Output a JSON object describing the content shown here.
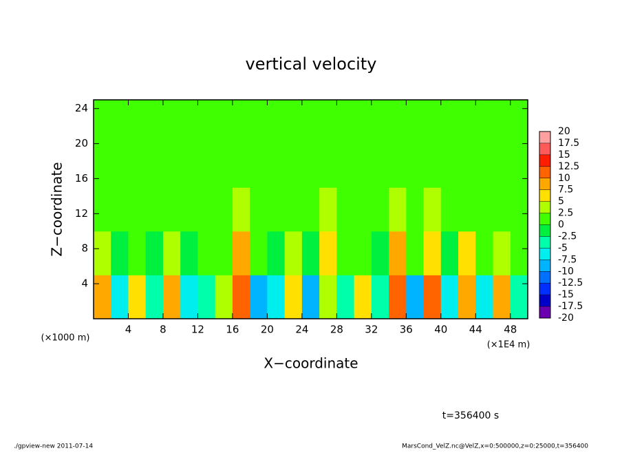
{
  "chart_data": {
    "type": "heatmap",
    "title": "vertical velocity",
    "x_label": "X−coordinate",
    "y_label": "Z−coordinate",
    "x_unit": "(×1E4 m)",
    "y_unit": "(×1000 m)",
    "x": [
      1,
      3,
      5,
      7,
      9,
      11,
      13,
      15,
      17,
      19,
      21,
      23,
      25,
      27,
      29,
      31,
      33,
      35,
      37,
      39,
      41,
      43,
      45,
      47,
      49
    ],
    "y": [
      2.5,
      7.5,
      12.5,
      17.5,
      22.5
    ],
    "z": [
      [
        8,
        -6,
        6,
        -5,
        9,
        -7,
        -4,
        3,
        12,
        -8,
        -6,
        5,
        -9,
        4,
        -5,
        6,
        -4,
        10,
        -8,
        12,
        -7,
        9,
        -6,
        8,
        -5
      ],
      [
        3,
        -2,
        2,
        -1,
        4,
        -2,
        1,
        2,
        9,
        0,
        -1,
        3,
        -2,
        5,
        0,
        2,
        -1,
        8,
        1,
        7,
        -1,
        5,
        0,
        4,
        0
      ],
      [
        1,
        1,
        2,
        1,
        2,
        1,
        1,
        2,
        4,
        1,
        1,
        2,
        1,
        3,
        1,
        2,
        1,
        3,
        2,
        3,
        1,
        2,
        1,
        2,
        1
      ],
      [
        1,
        1,
        1,
        1,
        1,
        1,
        1,
        1,
        2,
        1,
        1,
        1,
        1,
        2,
        1,
        1,
        1,
        1,
        2,
        2,
        1,
        1,
        1,
        1,
        1
      ],
      [
        1,
        1,
        1,
        1,
        1,
        1,
        1,
        1,
        1,
        1,
        1,
        1,
        1,
        1,
        1,
        1,
        1,
        1,
        1,
        1,
        1,
        1,
        1,
        1,
        1
      ]
    ],
    "xlim": [
      0,
      50
    ],
    "ylim": [
      0,
      25
    ],
    "xticks": [
      4,
      8,
      12,
      16,
      20,
      24,
      28,
      32,
      36,
      40,
      44,
      48
    ],
    "yticks": [
      4,
      8,
      12,
      16,
      20,
      24
    ],
    "levels": [
      -20,
      -17.5,
      -15,
      -12.5,
      -10,
      -7.5,
      -5,
      -2.5,
      0,
      2.5,
      5,
      7.5,
      10,
      12.5,
      15,
      17.5,
      20
    ],
    "colors": [
      "#6a00b0",
      "#0000c8",
      "#0030ff",
      "#0070ff",
      "#00b4ff",
      "#00eeee",
      "#00ffaa",
      "#00f040",
      "#40ff00",
      "#b0ff00",
      "#ffe000",
      "#ffa800",
      "#ff6400",
      "#ff1e00",
      "#ff5a5a",
      "#ffa0a0"
    ],
    "annotation": "t=356400 s",
    "footer_left": "./gpview-new  2011-07-14",
    "footer_right": "MarsCond_VelZ.nc@VelZ,x=0:500000,z=0:25000,t=356400"
  }
}
